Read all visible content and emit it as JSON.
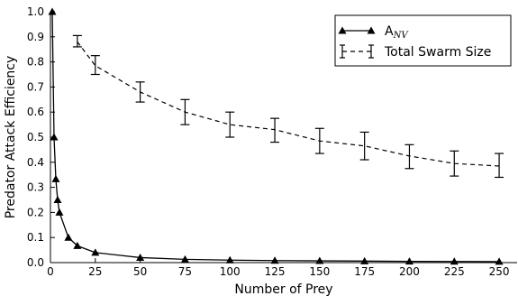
{
  "chart_data": {
    "type": "line",
    "xlabel": "Number of Prey",
    "ylabel": "Predator Attack Efficiency",
    "xlim": [
      0,
      260
    ],
    "ylim": [
      0.0,
      1.0
    ],
    "xticks": [
      "0",
      "25",
      "50",
      "75",
      "100",
      "125",
      "150",
      "175",
      "200",
      "225",
      "250"
    ],
    "yticks": [
      "0.0",
      "0.1",
      "0.2",
      "0.3",
      "0.4",
      "0.5",
      "0.6",
      "0.7",
      "0.8",
      "0.9",
      "1.0"
    ],
    "grid": false,
    "legend_position": "top-right",
    "series": [
      {
        "name_main": "A",
        "name_sub": "NV",
        "style": "solid line with triangle markers",
        "color": "#000000",
        "x": [
          1,
          2,
          3,
          4,
          5,
          10,
          15,
          25,
          50,
          75,
          100,
          125,
          150,
          175,
          200,
          225,
          250
        ],
        "y": [
          1.0,
          0.5,
          0.333,
          0.25,
          0.2,
          0.1,
          0.067,
          0.04,
          0.02,
          0.013,
          0.01,
          0.008,
          0.007,
          0.006,
          0.005,
          0.0044,
          0.004
        ]
      },
      {
        "name": "Total Swarm Size",
        "style": "dashed line with error bars",
        "color": "#000000",
        "x": [
          15,
          25,
          50,
          75,
          100,
          125,
          150,
          175,
          200,
          225,
          250
        ],
        "y": [
          0.88,
          0.785,
          0.68,
          0.6,
          0.55,
          0.53,
          0.485,
          0.465,
          0.425,
          0.395,
          0.385
        ],
        "err_low": [
          0.86,
          0.75,
          0.64,
          0.55,
          0.5,
          0.48,
          0.435,
          0.41,
          0.375,
          0.345,
          0.34
        ],
        "err_high": [
          0.905,
          0.825,
          0.72,
          0.65,
          0.6,
          0.575,
          0.535,
          0.52,
          0.47,
          0.445,
          0.435
        ]
      }
    ]
  }
}
